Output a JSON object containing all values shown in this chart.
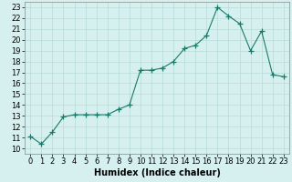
{
  "x": [
    0,
    1,
    2,
    3,
    4,
    5,
    6,
    7,
    8,
    9,
    10,
    11,
    12,
    13,
    14,
    15,
    16,
    17,
    18,
    19,
    20,
    21,
    22,
    23
  ],
  "y": [
    11.1,
    10.4,
    11.5,
    12.9,
    13.1,
    13.1,
    13.1,
    13.1,
    13.6,
    14.0,
    17.2,
    17.2,
    17.4,
    18.0,
    19.2,
    19.5,
    20.4,
    23.0,
    22.2,
    21.5,
    19.0,
    20.8,
    16.8,
    16.6
  ],
  "line_color": "#1a7a6a",
  "marker": "+",
  "marker_size": 4,
  "marker_color": "#1a7a6a",
  "bg_color": "#d6f0f0",
  "grid_color": "#b8dada",
  "xlabel": "Humidex (Indice chaleur)",
  "xlim": [
    -0.5,
    23.5
  ],
  "ylim": [
    9.5,
    23.5
  ],
  "yticks": [
    10,
    11,
    12,
    13,
    14,
    15,
    16,
    17,
    18,
    19,
    20,
    21,
    22,
    23
  ],
  "xticks": [
    0,
    1,
    2,
    3,
    4,
    5,
    6,
    7,
    8,
    9,
    10,
    11,
    12,
    13,
    14,
    15,
    16,
    17,
    18,
    19,
    20,
    21,
    22,
    23
  ],
  "label_fontsize": 7,
  "tick_fontsize": 6
}
